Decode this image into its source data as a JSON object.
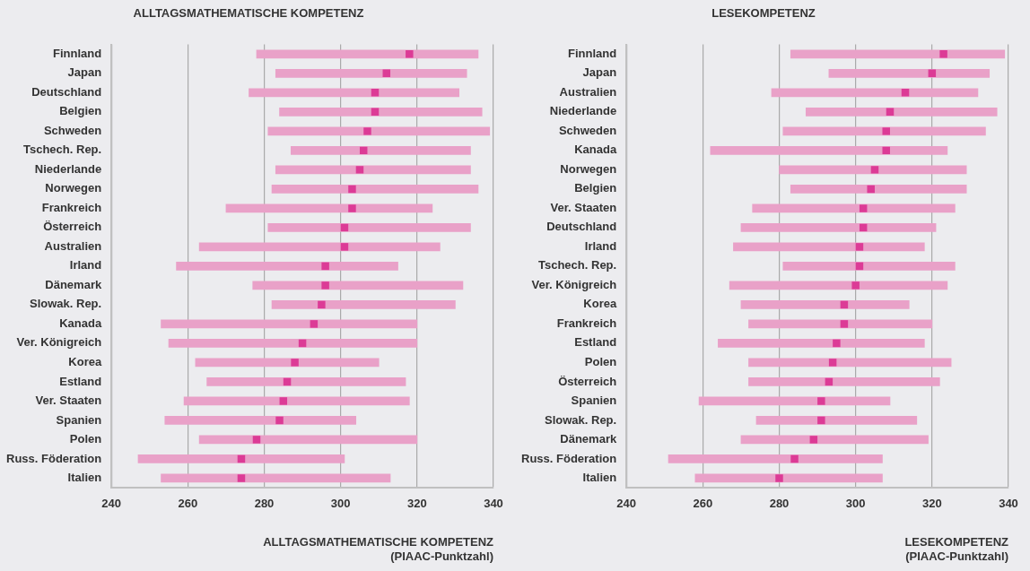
{
  "chart_data": [
    {
      "type": "bar",
      "orientation": "horizontal",
      "title": "ALLTAGSMATHEMATISCHE KOMPETENZ",
      "xlabel": "ALLTAGSMATHEMATISCHE KOMPETENZ\n(PIAAC-Punktzahl)",
      "grid": "x",
      "xlim": [
        240,
        340
      ],
      "xticks": [
        240,
        260,
        280,
        300,
        320,
        340
      ],
      "categories": [
        "Finnland",
        "Japan",
        "Deutschland",
        "Belgien",
        "Schweden",
        "Tschech. Rep.",
        "Niederlande",
        "Norwegen",
        "Frankreich",
        "Österreich",
        "Australien",
        "Irland",
        "Dänemark",
        "Slowak. Rep.",
        "Kanada",
        "Ver. Königreich",
        "Korea",
        "Estland",
        "Ver. Staaten",
        "Spanien",
        "Polen",
        "Russ. Föderation",
        "Italien"
      ],
      "series": [
        {
          "color": "#e9a1c8",
          "base": [
            278,
            283,
            276,
            284,
            281,
            287,
            283,
            282,
            270,
            281,
            263,
            257,
            277,
            282,
            253,
            255,
            262,
            265,
            259,
            254,
            263,
            247,
            253
          ],
          "values": [
            58,
            50,
            55,
            53,
            58,
            47,
            51,
            54,
            54,
            53,
            63,
            58,
            55,
            48,
            67,
            65,
            48,
            52,
            59,
            50,
            57,
            54,
            60
          ]
        },
        {
          "type": "scatter",
          "color": "#dc3b96",
          "marker": "square",
          "values": [
            318,
            312,
            309,
            309,
            307,
            306,
            305,
            303,
            303,
            301,
            301,
            296,
            296,
            295,
            293,
            290,
            288,
            286,
            285,
            284,
            278,
            274,
            274
          ]
        }
      ]
    },
    {
      "type": "bar",
      "orientation": "horizontal",
      "title": "LESEKOMPETENZ",
      "xlabel": "LESEKOMPETENZ\n(PIAAC-Punktzahl)",
      "grid": "x",
      "xlim": [
        240,
        340
      ],
      "xticks": [
        240,
        260,
        280,
        300,
        320,
        340
      ],
      "categories": [
        "Finnland",
        "Japan",
        "Australien",
        "Niederlande",
        "Schweden",
        "Kanada",
        "Norwegen",
        "Belgien",
        "Ver. Staaten",
        "Deutschland",
        "Irland",
        "Tschech. Rep.",
        "Ver. Königreich",
        "Korea",
        "Frankreich",
        "Estland",
        "Polen",
        "Österreich",
        "Spanien",
        "Slowak. Rep.",
        "Dänemark",
        "Russ. Föderation",
        "Italien"
      ],
      "series": [
        {
          "color": "#e9a1c8",
          "base": [
            283,
            293,
            278,
            287,
            281,
            262,
            280,
            283,
            273,
            270,
            268,
            281,
            267,
            270,
            272,
            264,
            272,
            272,
            259,
            274,
            270,
            251,
            258
          ],
          "values": [
            56,
            42,
            54,
            50,
            53,
            62,
            49,
            46,
            53,
            51,
            50,
            45,
            57,
            44,
            48,
            54,
            53,
            50,
            50,
            42,
            49,
            56,
            49
          ]
        },
        {
          "type": "scatter",
          "color": "#dc3b96",
          "marker": "square",
          "values": [
            323,
            320,
            313,
            309,
            308,
            308,
            305,
            304,
            302,
            302,
            301,
            301,
            300,
            297,
            297,
            295,
            294,
            293,
            291,
            291,
            289,
            284,
            280
          ]
        }
      ]
    }
  ]
}
